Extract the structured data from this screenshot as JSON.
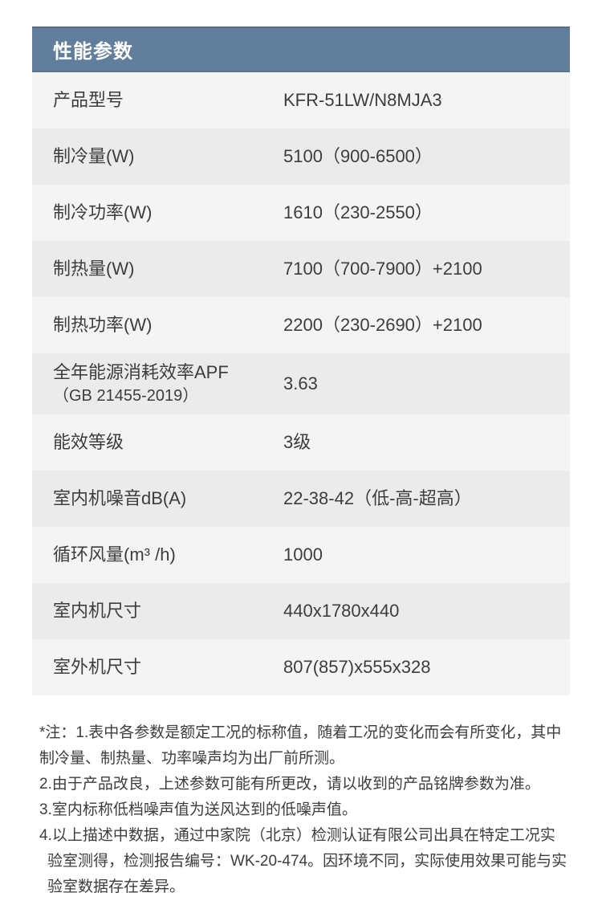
{
  "header": {
    "title": "性能参数"
  },
  "table": {
    "rows": [
      {
        "label": "产品型号",
        "value": "KFR-51LW/N8MJA3"
      },
      {
        "label": "制冷量(W)",
        "value": "5100（900-6500）"
      },
      {
        "label": "制冷功率(W)",
        "value": "1610（230-2550）"
      },
      {
        "label": "制热量(W)",
        "value": "7100（700-7900）+2100"
      },
      {
        "label": "制热功率(W)",
        "value": "2200（230-2690）+2100"
      },
      {
        "label": "全年能源消耗效率APF",
        "label_line2": "（GB 21455-2019）",
        "value": "3.63"
      },
      {
        "label": "能效等级",
        "value": "3级"
      },
      {
        "label": "室内机噪音dB(A)",
        "value": "22-38-42（低-高-超高）"
      },
      {
        "label": "循环风量(m³ /h)",
        "value": "1000"
      },
      {
        "label": "室内机尺寸",
        "value": "440x1780x440"
      },
      {
        "label": "室外机尺寸",
        "value": "807(857)x555x328"
      }
    ]
  },
  "notes": [
    "*注：1.表中各参数是额定工况的标称值，随着工况的变化而会有所变化，其中制冷量、制热量、功率噪声均为出厂前所测。",
    "2.由于产品改良，上述参数可能有所更改，请以收到的产品铭牌参数为准。",
    "3.室内标称低档噪声值为送风达到的低噪声值。",
    "4.以上描述中数据，通过中家院（北京）检测认证有限公司出具在特定工况实验室测得，检测报告编号：WK-20-474。因环境不同，实际使用效果可能与实验室数据存在差异。"
  ],
  "colors": {
    "header_bg": "#617e9d",
    "header_border": "#52708f",
    "header_text": "#ffffff",
    "row_light": "#f4f4f5",
    "row_dark": "#ebebec",
    "body_text": "#3d3d40",
    "page_bg": "#ffffff"
  }
}
